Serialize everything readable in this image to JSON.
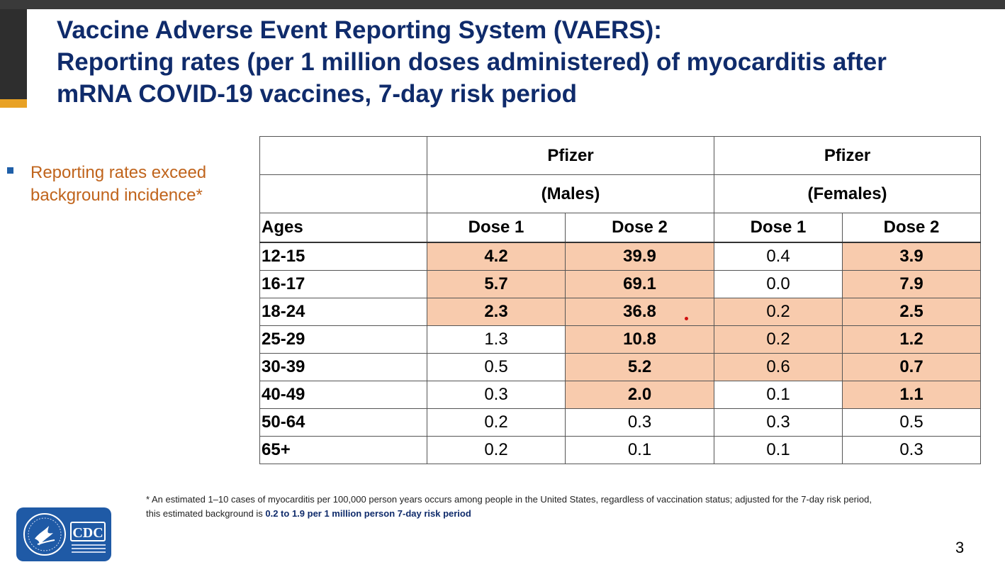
{
  "slide": {
    "title_lines": [
      "Vaccine Adverse Event Reporting System (VAERS):",
      "Reporting rates (per 1 million doses administered) of myocarditis after",
      "mRNA COVID-19 vaccines, 7-day risk period"
    ],
    "bullet": "Reporting rates exceed background incidence*",
    "page_number": "3",
    "colors": {
      "title": "#0f2b6b",
      "bullet_text": "#c0641c",
      "highlight": "#f8cbad",
      "accent": "#e8a124"
    }
  },
  "table": {
    "header_row1": [
      "",
      "Pfizer",
      "Pfizer"
    ],
    "header_row2": [
      "",
      "(Males)",
      "(Females)"
    ],
    "header_row3": [
      "Ages",
      "Dose 1",
      "Dose 2",
      "Dose 1",
      "Dose 2"
    ],
    "rows": [
      {
        "age": "12-15",
        "values": [
          "4.2",
          "39.9",
          "0.4",
          "3.9"
        ],
        "highlight": [
          true,
          true,
          false,
          true
        ]
      },
      {
        "age": "16-17",
        "values": [
          "5.7",
          "69.1",
          "0.0",
          "7.9"
        ],
        "highlight": [
          true,
          true,
          false,
          true
        ]
      },
      {
        "age": "18-24",
        "values": [
          "2.3",
          "36.8",
          "0.2",
          "2.5"
        ],
        "highlight": [
          true,
          true,
          true,
          true
        ]
      },
      {
        "age": "25-29",
        "values": [
          "1.3",
          "10.8",
          "0.2",
          "1.2"
        ],
        "highlight": [
          false,
          true,
          true,
          true
        ]
      },
      {
        "age": "30-39",
        "values": [
          "0.5",
          "5.2",
          "0.6",
          "0.7"
        ],
        "highlight": [
          false,
          true,
          true,
          true
        ]
      },
      {
        "age": "40-49",
        "values": [
          "0.3",
          "2.0",
          "0.1",
          "1.1"
        ],
        "highlight": [
          false,
          true,
          false,
          true
        ]
      },
      {
        "age": "50-64",
        "values": [
          "0.2",
          "0.3",
          "0.3",
          "0.5"
        ],
        "highlight": [
          false,
          false,
          false,
          false
        ]
      },
      {
        "age": "65+",
        "values": [
          "0.2",
          "0.1",
          "0.1",
          "0.3"
        ],
        "highlight": [
          false,
          false,
          false,
          false
        ]
      }
    ]
  },
  "footnote": {
    "text": "* An estimated 1–10 cases of myocarditis per 100,000 person years occurs among people in the United States, regardless of vaccination status; adjusted for the 7-day risk period, this estimated background is ",
    "bold": "0.2 to 1.9 per 1 million person 7-day risk period"
  },
  "logo": {
    "cdc": "CDC",
    "icon": "hhs-eagle-seal-icon"
  }
}
